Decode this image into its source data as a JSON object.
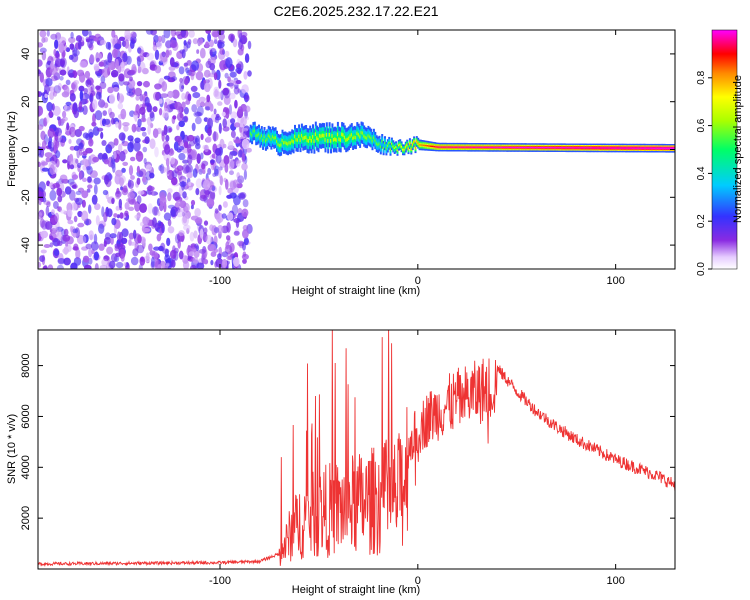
{
  "title": "C2E6.2025.232.17.22.E21",
  "chart_data": [
    {
      "type": "heatmap",
      "name": "spectrogram",
      "xlabel": "Height of straight line (km)",
      "ylabel": "Frequency (Hz)",
      "xlim": [
        -192,
        130
      ],
      "ylim": [
        -50,
        50
      ],
      "xticks": [
        -100,
        0,
        100
      ],
      "xtick_labels": [
        "-100",
        "0",
        "100"
      ],
      "yticks": [
        -40,
        -20,
        0,
        20,
        40
      ],
      "ytick_labels": [
        "-40",
        "-20",
        "0",
        "20",
        "40"
      ],
      "noise_region": {
        "x_range": [
          -192,
          -85
        ],
        "y_range": [
          -50,
          50
        ],
        "intensity_range": [
          0.05,
          0.2
        ]
      },
      "signal_band": [
        {
          "x": -85,
          "y_center": 7,
          "half_width": 2.5,
          "amplitude": 0.4
        },
        {
          "x": -70,
          "y_center": 3,
          "half_width": 3,
          "amplitude": 0.45
        },
        {
          "x": -55,
          "y_center": 5,
          "half_width": 3.5,
          "amplitude": 0.5
        },
        {
          "x": -40,
          "y_center": 5,
          "half_width": 3.5,
          "amplitude": 0.5
        },
        {
          "x": -28,
          "y_center": 6,
          "half_width": 3,
          "amplitude": 0.45
        },
        {
          "x": -18,
          "y_center": 2,
          "half_width": 2,
          "amplitude": 0.4
        },
        {
          "x": -10,
          "y_center": 1,
          "half_width": 1.5,
          "amplitude": 0.55
        },
        {
          "x": 0,
          "y_center": 2,
          "half_width": 1.5,
          "amplitude": 0.65
        },
        {
          "x": 10,
          "y_center": 1,
          "half_width": 1.2,
          "amplitude": 0.8
        },
        {
          "x": 130,
          "y_center": 0.5,
          "half_width": 1.2,
          "amplitude": 0.95
        }
      ],
      "colorbar": {
        "label": "Normalized spectral amplitude",
        "range": [
          0,
          1
        ],
        "ticks": [
          0.0,
          0.2,
          0.4,
          0.6,
          0.8
        ],
        "tick_labels": [
          "0.0",
          "0.2",
          "0.4",
          "0.6",
          "0.8"
        ]
      }
    },
    {
      "type": "line",
      "name": "snr",
      "xlabel": "Height of straight line (km)",
      "ylabel": "SNR (10 * v/v)",
      "xlim": [
        -192,
        130
      ],
      "ylim": [
        0,
        9400
      ],
      "xticks": [
        -100,
        0,
        100
      ],
      "xtick_labels": [
        "-100",
        "0",
        "100"
      ],
      "yticks": [
        2000,
        4000,
        6000,
        8000
      ],
      "ytick_labels": [
        "2000",
        "4000",
        "6000",
        "8000"
      ],
      "series": [
        {
          "name": "SNR",
          "color": "#ee3333",
          "x": [
            -192,
            -100,
            -80,
            -70,
            -65,
            -60,
            -50,
            -40,
            -30,
            -20,
            -10,
            -5,
            0,
            5,
            10,
            20,
            30,
            40,
            50,
            60,
            70,
            80,
            90,
            100,
            110,
            120,
            130
          ],
          "y": [
            200,
            250,
            300,
            600,
            1600,
            2300,
            2800,
            3000,
            3200,
            3400,
            3600,
            5200,
            5900,
            6400,
            6700,
            7200,
            7500,
            7900,
            7000,
            6200,
            5600,
            5100,
            4700,
            4300,
            4000,
            3700,
            3300
          ]
        }
      ]
    }
  ]
}
